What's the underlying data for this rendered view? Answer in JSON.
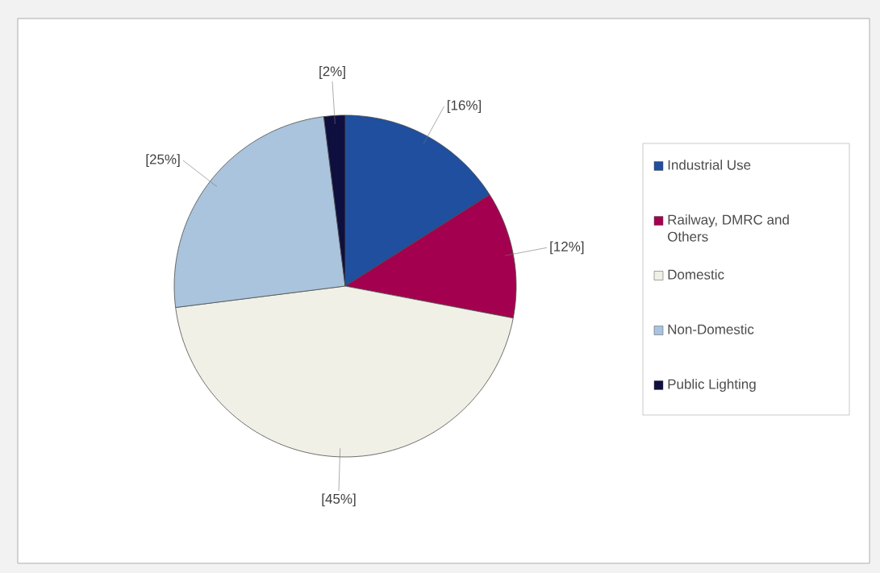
{
  "chart_data": {
    "type": "pie",
    "categories": [
      "Industrial Use",
      "Railway, DMRC and Others",
      "Domestic",
      "Non-Domestic",
      "Public Lighting"
    ],
    "values": [
      16,
      12,
      45,
      25,
      2
    ],
    "colors": [
      "#1f4f9e",
      "#a3004f",
      "#f1f0e6",
      "#a9c4dc",
      "#0e0e3f"
    ],
    "value_labels": [
      "[16%]",
      "[12%]",
      "[45%]",
      "[25%]",
      "[2%]"
    ],
    "legend": "right"
  }
}
